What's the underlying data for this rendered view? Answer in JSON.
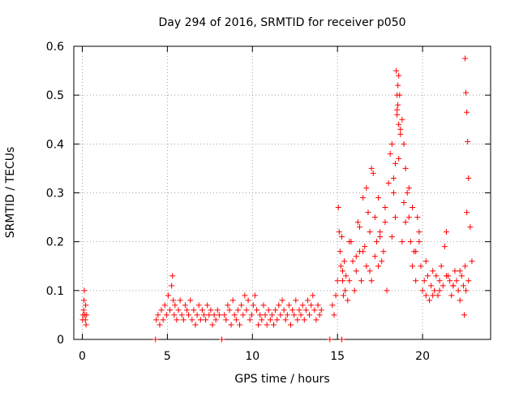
{
  "chart_data": {
    "type": "scatter",
    "title": "Day 294 of 2016, SRMTID for receiver p050",
    "xlabel": "GPS time / hours",
    "ylabel": "SRMTID / TECUs",
    "xlim": [
      -0.5,
      24
    ],
    "ylim": [
      0,
      0.6
    ],
    "xticks": [
      0,
      5,
      10,
      15,
      20
    ],
    "yticks": [
      0,
      0.1,
      0.2,
      0.3,
      0.4,
      0.5,
      0.6
    ],
    "xtick_labels": [
      "0",
      "5",
      "10",
      "15",
      "20"
    ],
    "ytick_labels": [
      "0",
      "0.1",
      "0.2",
      "0.3",
      "0.4",
      "0.5",
      "0.6"
    ],
    "grid": true,
    "marker": "plus",
    "series_color": "#ff0000",
    "series": [
      {
        "name": "SRMTID",
        "x": [
          0.02,
          0.05,
          0.08,
          0.1,
          0.12,
          0.15,
          0.18,
          0.2,
          0.22,
          0.25,
          4.35,
          4.45,
          4.55,
          4.65,
          4.75,
          4.85,
          4.95,
          5.05,
          5.15,
          5.25,
          5.3,
          5.35,
          5.4,
          5.45,
          5.55,
          5.65,
          5.75,
          5.85,
          5.95,
          6.05,
          6.15,
          6.25,
          6.35,
          6.45,
          6.55,
          6.65,
          6.75,
          6.85,
          6.95,
          7.05,
          7.15,
          7.25,
          7.35,
          7.45,
          7.55,
          7.65,
          7.75,
          7.85,
          7.95,
          8.05,
          8.35,
          8.45,
          8.55,
          8.65,
          8.75,
          8.85,
          8.95,
          9.05,
          9.15,
          9.25,
          9.35,
          9.45,
          9.55,
          9.65,
          9.75,
          9.85,
          9.95,
          10.05,
          10.15,
          10.25,
          10.35,
          10.45,
          10.55,
          10.65,
          10.75,
          10.85,
          10.95,
          11.05,
          11.15,
          11.25,
          11.35,
          11.45,
          11.55,
          11.65,
          11.75,
          11.85,
          11.95,
          12.05,
          12.15,
          12.25,
          12.35,
          12.45,
          12.55,
          12.65,
          12.75,
          12.85,
          12.95,
          13.05,
          13.15,
          13.25,
          13.35,
          13.45,
          13.55,
          13.65,
          13.75,
          13.85,
          13.95,
          14.05,
          14.7,
          14.8,
          14.9,
          15.0,
          15.05,
          15.1,
          15.15,
          15.2,
          15.25,
          15.3,
          15.35,
          15.4,
          15.45,
          15.5,
          15.6,
          15.7,
          15.8,
          15.9,
          16.0,
          16.1,
          16.2,
          16.3,
          16.4,
          16.5,
          16.6,
          16.7,
          16.8,
          16.9,
          17.0,
          17.1,
          17.2,
          17.3,
          17.4,
          17.5,
          17.6,
          17.7,
          17.8,
          17.9,
          18.0,
          18.1,
          18.2,
          18.3,
          18.4,
          18.5,
          18.55,
          18.6,
          18.65,
          18.7,
          18.8,
          18.9,
          19.0,
          19.1,
          19.2,
          19.3,
          19.4,
          19.5,
          19.6,
          19.7,
          19.8,
          19.9,
          20.0,
          20.1,
          20.2,
          20.3,
          20.4,
          20.5,
          20.6,
          20.7,
          20.8,
          20.9,
          21.0,
          21.1,
          21.2,
          21.3,
          21.4,
          21.5,
          21.6,
          21.7,
          21.8,
          21.9,
          22.0,
          22.1,
          22.2,
          22.3,
          22.4,
          22.45,
          22.5,
          22.55,
          22.6,
          22.7,
          22.8,
          22.9,
          18.45,
          18.5,
          18.55,
          18.5,
          18.6,
          18.7,
          18.4,
          18.3,
          18.6,
          18.9,
          19.0,
          18.8,
          17.5,
          17.2,
          16.9,
          16.5,
          16.1,
          15.7,
          15.3,
          19.4,
          19.8,
          20.2,
          20.6,
          21.0,
          21.4,
          21.8,
          22.2,
          22.5,
          22.55,
          22.6,
          22.65,
          22.7,
          16.3,
          16.7,
          17.0,
          17.4,
          17.8,
          18.2,
          19.2,
          19.6,
          4.3,
          8.2,
          14.55,
          15.25
        ],
        "y": [
          0.04,
          0.05,
          0.06,
          0.08,
          0.1,
          0.05,
          0.04,
          0.07,
          0.03,
          0.05,
          0.04,
          0.05,
          0.03,
          0.06,
          0.04,
          0.07,
          0.05,
          0.09,
          0.06,
          0.11,
          0.13,
          0.08,
          0.05,
          0.07,
          0.04,
          0.06,
          0.08,
          0.05,
          0.04,
          0.07,
          0.06,
          0.05,
          0.08,
          0.04,
          0.06,
          0.03,
          0.05,
          0.07,
          0.04,
          0.06,
          0.05,
          0.04,
          0.07,
          0.05,
          0.06,
          0.03,
          0.05,
          0.04,
          0.06,
          0.05,
          0.05,
          0.04,
          0.07,
          0.06,
          0.03,
          0.08,
          0.05,
          0.04,
          0.06,
          0.03,
          0.07,
          0.05,
          0.09,
          0.06,
          0.08,
          0.04,
          0.05,
          0.07,
          0.09,
          0.06,
          0.03,
          0.05,
          0.04,
          0.07,
          0.05,
          0.03,
          0.06,
          0.04,
          0.05,
          0.03,
          0.06,
          0.04,
          0.07,
          0.05,
          0.08,
          0.06,
          0.04,
          0.05,
          0.07,
          0.03,
          0.06,
          0.05,
          0.08,
          0.04,
          0.06,
          0.05,
          0.07,
          0.04,
          0.06,
          0.08,
          0.05,
          0.07,
          0.09,
          0.06,
          0.04,
          0.07,
          0.05,
          0.06,
          0.07,
          0.05,
          0.09,
          0.12,
          0.27,
          0.22,
          0.18,
          0.15,
          0.21,
          0.12,
          0.09,
          0.16,
          0.1,
          0.13,
          0.08,
          0.12,
          0.2,
          0.16,
          0.1,
          0.14,
          0.24,
          0.18,
          0.12,
          0.29,
          0.19,
          0.15,
          0.26,
          0.22,
          0.12,
          0.34,
          0.25,
          0.2,
          0.15,
          0.22,
          0.16,
          0.18,
          0.27,
          0.1,
          0.32,
          0.38,
          0.4,
          0.3,
          0.25,
          0.47,
          0.52,
          0.54,
          0.5,
          0.42,
          0.45,
          0.4,
          0.35,
          0.3,
          0.25,
          0.2,
          0.15,
          0.18,
          0.12,
          0.25,
          0.2,
          0.15,
          0.1,
          0.12,
          0.09,
          0.13,
          0.08,
          0.11,
          0.14,
          0.1,
          0.13,
          0.09,
          0.12,
          0.15,
          0.11,
          0.19,
          0.22,
          0.13,
          0.12,
          0.09,
          0.11,
          0.14,
          0.12,
          0.1,
          0.08,
          0.13,
          0.11,
          0.05,
          0.15,
          0.1,
          0.26,
          0.12,
          0.23,
          0.16,
          0.55,
          0.5,
          0.48,
          0.46,
          0.44,
          0.43,
          0.36,
          0.33,
          0.37,
          0.28,
          0.24,
          0.2,
          0.21,
          0.17,
          0.14,
          0.18,
          0.17,
          0.2,
          0.14,
          0.27,
          0.22,
          0.16,
          0.09,
          0.1,
          0.13,
          0.11,
          0.14,
          0.575,
          0.505,
          0.465,
          0.405,
          0.33,
          0.23,
          0.31,
          0.35,
          0.29,
          0.24,
          0.21,
          0.31,
          0.18,
          0.0,
          0.0,
          0.0,
          0.0
        ]
      }
    ]
  }
}
